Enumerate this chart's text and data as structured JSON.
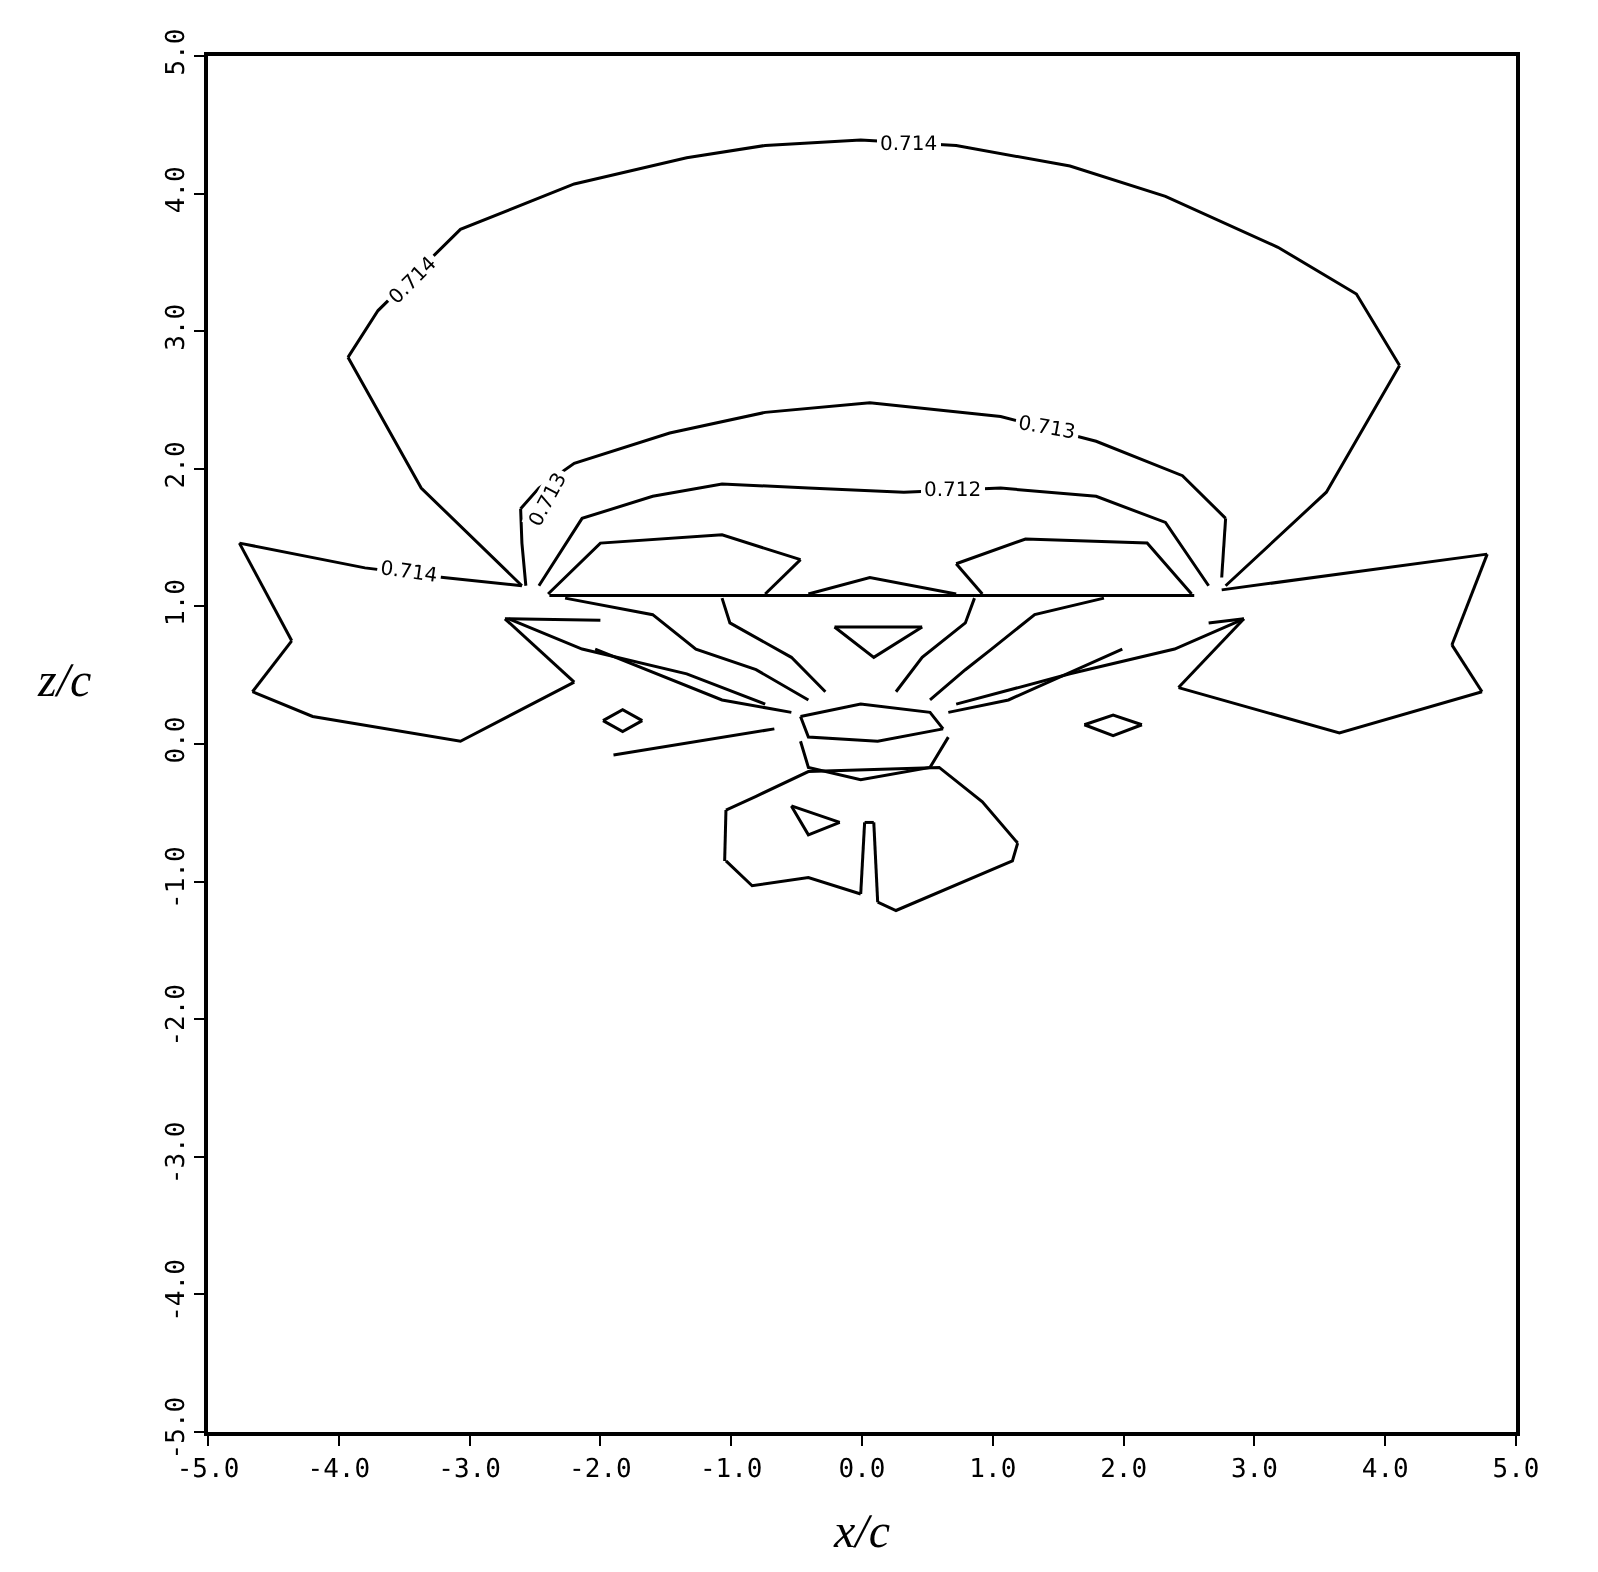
{
  "chart_data": {
    "type": "line",
    "xlabel": "x/c",
    "ylabel": "z/c",
    "xlim": [
      -5,
      5
    ],
    "ylim": [
      -5,
      5
    ],
    "xticks": [
      {
        "value": -5,
        "label": "-5.0"
      },
      {
        "value": -4,
        "label": "-4.0"
      },
      {
        "value": -3,
        "label": "-3.0"
      },
      {
        "value": -2,
        "label": "-2.0"
      },
      {
        "value": -1,
        "label": "-1.0"
      },
      {
        "value": 0,
        "label": "0.0"
      },
      {
        "value": 1,
        "label": "1.0"
      },
      {
        "value": 2,
        "label": "2.0"
      },
      {
        "value": 3,
        "label": "3.0"
      },
      {
        "value": 4,
        "label": "4.0"
      },
      {
        "value": 5,
        "label": "5.0"
      }
    ],
    "yticks": [
      {
        "value": -5,
        "label": "-5.0"
      },
      {
        "value": -4,
        "label": "-4.0"
      },
      {
        "value": -3,
        "label": "-3.0"
      },
      {
        "value": -2,
        "label": "-2.0"
      },
      {
        "value": -1,
        "label": "-1.0"
      },
      {
        "value": 0,
        "label": "0.0"
      },
      {
        "value": 1,
        "label": "1.0"
      },
      {
        "value": 2,
        "label": "2.0"
      },
      {
        "value": 3,
        "label": "3.0"
      },
      {
        "value": 4,
        "label": "4.0"
      },
      {
        "value": 5,
        "label": "5.0"
      }
    ],
    "marker": "none",
    "line_style": "solid",
    "annotations": [
      {
        "text": "0.714",
        "x": 0.36,
        "y": 4.36
      },
      {
        "text": "0.714",
        "x": -3.43,
        "y": 3.37
      },
      {
        "text": "0.713",
        "x": 1.42,
        "y": 2.29
      },
      {
        "text": "0.712",
        "x": 0.69,
        "y": 1.84
      },
      {
        "text": "0.713",
        "x": -2.4,
        "y": 1.77
      },
      {
        "text": "0.714",
        "x": -3.47,
        "y": 1.24
      }
    ],
    "series": [
      {
        "color": "#000000",
        "x": [
          -3.93,
          -3.37,
          -2.6
        ],
        "values": [
          2.81,
          1.86,
          1.15
        ]
      },
      {
        "color": "#000000",
        "x": [
          -3.93,
          -3.7,
          -3.07,
          -2.2,
          -1.34,
          -0.74,
          -0.01,
          0.72,
          1.59,
          2.32,
          3.18,
          3.78,
          4.11
        ],
        "values": [
          2.81,
          3.15,
          3.74,
          4.07,
          4.26,
          4.35,
          4.39,
          4.35,
          4.2,
          3.98,
          3.61,
          3.27,
          2.75
        ]
      },
      {
        "color": "#000000",
        "x": [
          2.78,
          3.55,
          4.11
        ],
        "values": [
          1.15,
          1.83,
          2.75
        ]
      },
      {
        "color": "#000000",
        "x": [
          -4.76,
          -3.8,
          -3.2,
          -2.6
        ],
        "values": [
          1.46,
          1.28,
          1.21,
          1.15
        ]
      },
      {
        "color": "#000000",
        "x": [
          -4.76,
          -4.36
        ],
        "values": [
          1.46,
          0.75
        ]
      },
      {
        "color": "#000000",
        "x": [
          -4.66,
          -4.36
        ],
        "values": [
          0.38,
          0.75
        ]
      },
      {
        "color": "#000000",
        "x": [
          -4.66,
          -4.2,
          -3.07,
          -2.2
        ],
        "values": [
          0.38,
          0.2,
          0.02,
          0.45
        ]
      },
      {
        "color": "#000000",
        "x": [
          -2.73,
          -2.2
        ],
        "values": [
          0.91,
          0.45
        ]
      },
      {
        "color": "#000000",
        "x": [
          -2.73,
          -2.0
        ],
        "values": [
          0.91,
          0.9
        ]
      },
      {
        "color": "#000000",
        "x": [
          2.75,
          4.78
        ],
        "values": [
          1.12,
          1.38
        ]
      },
      {
        "color": "#000000",
        "x": [
          4.51,
          4.78
        ],
        "values": [
          0.72,
          1.38
        ]
      },
      {
        "color": "#000000",
        "x": [
          4.51,
          4.74
        ],
        "values": [
          0.72,
          0.38
        ]
      },
      {
        "color": "#000000",
        "x": [
          2.42,
          3.65,
          4.74
        ],
        "values": [
          0.41,
          0.08,
          0.38
        ]
      },
      {
        "color": "#000000",
        "x": [
          2.42,
          2.92
        ],
        "values": [
          0.41,
          0.91
        ]
      },
      {
        "color": "#000000",
        "x": [
          2.65,
          2.92
        ],
        "values": [
          0.88,
          0.91
        ]
      },
      {
        "color": "#000000",
        "x": [
          -2.61,
          -2.6,
          -2.57
        ],
        "values": [
          1.71,
          1.46,
          1.15
        ]
      },
      {
        "color": "#000000",
        "x": [
          -2.61,
          -2.47,
          -2.2,
          -1.47,
          -0.74,
          0.06,
          1.06,
          1.79,
          2.45,
          2.78
        ],
        "values": [
          1.71,
          1.86,
          2.04,
          2.26,
          2.41,
          2.48,
          2.38,
          2.2,
          1.95,
          1.64
        ]
      },
      {
        "color": "#000000",
        "x": [
          2.75,
          2.78
        ],
        "values": [
          1.21,
          1.64
        ]
      },
      {
        "color": "#000000",
        "x": [
          -2.47,
          -2.14,
          -1.6,
          -1.07,
          -0.41,
          0.32,
          1.06,
          1.79,
          2.32,
          2.65
        ],
        "values": [
          1.15,
          1.64,
          1.8,
          1.89,
          1.86,
          1.83,
          1.86,
          1.8,
          1.61,
          1.15
        ]
      },
      {
        "color": "#000000",
        "x": [
          -2.4,
          -2.0,
          -1.07,
          -0.47
        ],
        "values": [
          1.09,
          1.46,
          1.52,
          1.34
        ]
      },
      {
        "color": "#000000",
        "x": [
          -0.74,
          -0.47
        ],
        "values": [
          1.09,
          1.34
        ]
      },
      {
        "color": "#000000",
        "x": [
          0.72,
          1.25,
          2.18,
          2.52
        ],
        "values": [
          1.31,
          1.49,
          1.46,
          1.09
        ]
      },
      {
        "color": "#000000",
        "x": [
          0.72,
          0.92
        ],
        "values": [
          1.31,
          1.09
        ]
      },
      {
        "color": "#000000",
        "x": [
          -2.39,
          2.54
        ],
        "values": [
          1.08,
          1.08
        ]
      },
      {
        "color": "#000000",
        "x": [
          -0.41,
          0.06,
          0.72
        ],
        "values": [
          1.09,
          1.21,
          1.09
        ]
      },
      {
        "color": "#000000",
        "x": [
          -0.21,
          0.46
        ],
        "values": [
          0.85,
          0.85
        ]
      },
      {
        "color": "#000000",
        "x": [
          -0.21,
          0.09,
          0.46
        ],
        "values": [
          0.85,
          0.63,
          0.85
        ]
      },
      {
        "color": "#000000",
        "x": [
          -0.47,
          -0.01,
          0.52,
          0.62
        ],
        "values": [
          0.2,
          0.29,
          0.23,
          0.11
        ]
      },
      {
        "color": "#000000",
        "x": [
          -0.47,
          -0.41,
          0.12,
          0.62
        ],
        "values": [
          0.2,
          0.05,
          0.02,
          0.11
        ]
      },
      {
        "color": "#000000",
        "x": [
          -0.47,
          -0.41,
          -0.01,
          0.52,
          0.66
        ],
        "values": [
          0.02,
          -0.17,
          -0.26,
          -0.17,
          0.05
        ]
      },
      {
        "color": "#000000",
        "x": [
          -1.04,
          -0.81,
          -0.41,
          0.59,
          0.92,
          1.19
        ],
        "values": [
          -0.48,
          -0.38,
          -0.2,
          -0.17,
          -0.42,
          -0.72
        ]
      },
      {
        "color": "#000000",
        "x": [
          0.12,
          0.26,
          1.15,
          1.19
        ],
        "values": [
          -1.15,
          -1.21,
          -0.85,
          -0.72
        ]
      },
      {
        "color": "#000000",
        "x": [
          0.09,
          0.12
        ],
        "values": [
          -0.57,
          -1.15
        ]
      },
      {
        "color": "#000000",
        "x": [
          0.02,
          0.09
        ],
        "values": [
          -0.57,
          -0.57
        ]
      },
      {
        "color": "#000000",
        "x": [
          -0.01,
          0.02
        ],
        "values": [
          -1.09,
          -0.57
        ]
      },
      {
        "color": "#000000",
        "x": [
          -1.04,
          -0.84,
          -0.41,
          -0.01
        ],
        "values": [
          -0.85,
          -1.03,
          -0.97,
          -1.09
        ]
      },
      {
        "color": "#000000",
        "x": [
          -1.05,
          -1.04
        ],
        "values": [
          -0.85,
          -0.48
        ]
      },
      {
        "color": "#000000",
        "x": [
          -0.54,
          -0.17
        ],
        "values": [
          -0.45,
          -0.57
        ]
      },
      {
        "color": "#000000",
        "x": [
          -0.54,
          -0.41,
          -0.17
        ],
        "values": [
          -0.45,
          -0.66,
          -0.57
        ]
      },
      {
        "color": "#000000",
        "x": [
          -1.9,
          -0.67
        ],
        "values": [
          -0.08,
          0.11
        ]
      },
      {
        "color": "#000000",
        "x": [
          -2.7,
          -2.14,
          -1.34,
          -0.74
        ],
        "values": [
          0.91,
          0.69,
          0.51,
          0.29
        ]
      },
      {
        "color": "#000000",
        "x": [
          -2.04,
          -1.07,
          -0.54
        ],
        "values": [
          0.69,
          0.32,
          0.23
        ]
      },
      {
        "color": "#000000",
        "x": [
          2.92,
          2.39,
          1.59,
          0.72
        ],
        "values": [
          0.91,
          0.69,
          0.51,
          0.29
        ]
      },
      {
        "color": "#000000",
        "x": [
          1.99,
          1.12,
          0.66
        ],
        "values": [
          0.69,
          0.32,
          0.23
        ]
      },
      {
        "color": "#000000",
        "x": [
          -2.27,
          -1.6,
          -1.27,
          -0.81,
          -0.41
        ],
        "values": [
          1.06,
          0.94,
          0.69,
          0.54,
          0.32
        ]
      },
      {
        "color": "#000000",
        "x": [
          -1.07,
          -1.01,
          -0.54,
          -0.28
        ],
        "values": [
          1.06,
          0.88,
          0.63,
          0.38
        ]
      },
      {
        "color": "#000000",
        "x": [
          1.85,
          1.32,
          0.99,
          0.79,
          0.52
        ],
        "values": [
          1.06,
          0.94,
          0.69,
          0.54,
          0.32
        ]
      },
      {
        "color": "#000000",
        "x": [
          0.86,
          0.79,
          0.46,
          0.26
        ],
        "values": [
          1.06,
          0.88,
          0.63,
          0.38
        ]
      },
      {
        "color": "#000000",
        "x": [
          -1.98,
          -1.83,
          -1.68
        ],
        "values": [
          0.17,
          0.25,
          0.17
        ]
      },
      {
        "color": "#000000",
        "x": [
          -1.98,
          -1.83,
          -1.68
        ],
        "values": [
          0.17,
          0.09,
          0.17
        ]
      },
      {
        "color": "#000000",
        "x": [
          1.7,
          1.92,
          2.14
        ],
        "values": [
          0.14,
          0.21,
          0.14
        ]
      },
      {
        "color": "#000000",
        "x": [
          1.7,
          1.92,
          2.14
        ],
        "values": [
          0.14,
          0.06,
          0.14
        ]
      }
    ]
  }
}
